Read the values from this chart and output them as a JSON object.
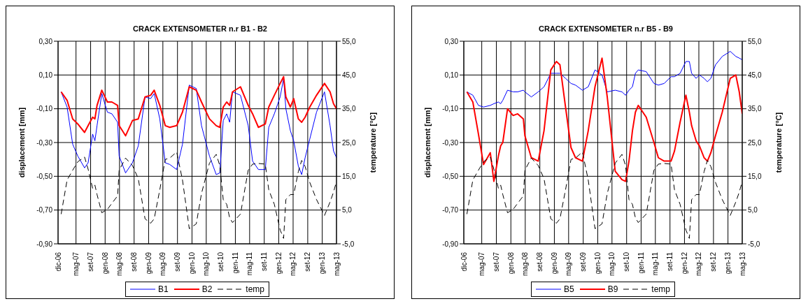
{
  "chart_data": [
    {
      "type": "line",
      "title": "CRACK EXTENSOMETER n.r B1 - B2",
      "ylabel": "displacement [mm]",
      "y2label": "temperature [°C]",
      "x": [
        "2006-12-27",
        "2007-02-15",
        "2007-04-03",
        "2007-05-16",
        "2007-07-12",
        "2007-08-11",
        "2007-09-18",
        "2007-10-07",
        "2007-10-25",
        "2007-12-04",
        "2008-01-20",
        "2008-02-27",
        "2008-04-15",
        "2008-04-28",
        "2008-06-21",
        "2008-08-18",
        "2008-10-06",
        "2008-12-02",
        "2009-01-18",
        "2009-02-17",
        "2009-04-05",
        "2009-05-21",
        "2009-06-28",
        "2009-08-25",
        "2009-10-13",
        "2009-12-09",
        "2010-02-06",
        "2010-03-22",
        "2010-05-28",
        "2010-07-24",
        "2010-08-23",
        "2010-09-21",
        "2010-10-20",
        "2010-11-14",
        "2010-12-08",
        "2011-02-13",
        "2011-04-19",
        "2011-05-26",
        "2011-07-14",
        "2011-09-10",
        "2011-10-09",
        "2011-11-25",
        "2012-01-13",
        "2012-02-11",
        "2012-03-01",
        "2012-04-08",
        "2012-05-06",
        "2012-06-14",
        "2012-07-12",
        "2012-08-10",
        "2012-09-18",
        "2012-11-14",
        "2013-01-20",
        "2013-03-08",
        "2013-04-06",
        "2013-05-01"
      ],
      "series": [
        {
          "name": "B1",
          "color": "#0000ff",
          "line_style": "solid",
          "values": [
            0.0,
            -0.09,
            -0.31,
            -0.38,
            -0.45,
            -0.42,
            -0.25,
            -0.29,
            -0.2,
            -0.01,
            -0.12,
            -0.13,
            -0.18,
            -0.38,
            -0.48,
            -0.42,
            -0.32,
            -0.03,
            -0.04,
            -0.01,
            -0.16,
            -0.42,
            -0.43,
            -0.46,
            -0.31,
            0.04,
            0.02,
            -0.2,
            -0.38,
            -0.49,
            -0.48,
            -0.17,
            -0.13,
            -0.18,
            0.0,
            -0.02,
            -0.2,
            -0.41,
            -0.46,
            -0.46,
            -0.21,
            -0.13,
            -0.03,
            0.08,
            -0.1,
            -0.23,
            -0.29,
            -0.44,
            -0.49,
            -0.39,
            -0.28,
            -0.12,
            0.0,
            -0.2,
            -0.35,
            -0.39
          ]
        },
        {
          "name": "B2",
          "color": "#ff0000",
          "line_style": "solid",
          "values": [
            0.0,
            -0.05,
            -0.16,
            -0.19,
            -0.24,
            -0.2,
            -0.15,
            -0.16,
            -0.08,
            0.01,
            -0.06,
            -0.06,
            -0.08,
            -0.2,
            -0.26,
            -0.17,
            -0.16,
            -0.03,
            -0.02,
            0.01,
            -0.08,
            -0.2,
            -0.21,
            -0.2,
            -0.12,
            0.03,
            0.01,
            -0.06,
            -0.16,
            -0.2,
            -0.21,
            -0.09,
            -0.06,
            -0.08,
            0.0,
            0.03,
            -0.08,
            -0.13,
            -0.21,
            -0.19,
            -0.09,
            -0.02,
            0.05,
            0.09,
            -0.03,
            -0.09,
            -0.04,
            -0.16,
            -0.18,
            -0.15,
            -0.09,
            -0.02,
            0.05,
            0.0,
            -0.07,
            -0.1
          ]
        },
        {
          "name": "temp",
          "color": "#000000",
          "line_style": "dashed",
          "axis": "y2",
          "values": [
            3.8,
            13.9,
            16.8,
            19.3,
            20.7,
            17.1,
            11.4,
            12.4,
            9.6,
            4.2,
            5.2,
            7.0,
            9.2,
            16.8,
            20.4,
            18.2,
            14.3,
            2.4,
            1.1,
            2.4,
            11.0,
            20.0,
            20.4,
            22.2,
            13.9,
            -0.5,
            0.9,
            9.9,
            18.9,
            21.5,
            18.2,
            8.1,
            6.7,
            2.7,
            1.3,
            3.8,
            16.8,
            18.6,
            18.8,
            18.6,
            11.0,
            6.7,
            -0.9,
            -3.4,
            8.1,
            9.6,
            9.6,
            16.4,
            19.7,
            17.9,
            13.2,
            8.1,
            3.4,
            7.4,
            10.3,
            13.5
          ]
        }
      ],
      "xlim": [
        "2006-12",
        "2013-05"
      ],
      "xticks": [
        {
          "value": "2006-12",
          "label": "dic-06"
        },
        {
          "value": "2007-05",
          "label": "mag-07"
        },
        {
          "value": "2007-09",
          "label": "set-07"
        },
        {
          "value": "2008-01",
          "label": "gen-08"
        },
        {
          "value": "2008-05",
          "label": "mag-08"
        },
        {
          "value": "2008-09",
          "label": "set-08"
        },
        {
          "value": "2009-01",
          "label": "gen-09"
        },
        {
          "value": "2009-05",
          "label": "mag-09"
        },
        {
          "value": "2009-09",
          "label": "set-09"
        },
        {
          "value": "2010-01",
          "label": "gen-10"
        },
        {
          "value": "2010-05",
          "label": "mag-10"
        },
        {
          "value": "2010-09",
          "label": "set-10"
        },
        {
          "value": "2011-01",
          "label": "gen-11"
        },
        {
          "value": "2011-05",
          "label": "mag-11"
        },
        {
          "value": "2011-09",
          "label": "set-11"
        },
        {
          "value": "2012-01",
          "label": "gen-12"
        },
        {
          "value": "2012-05",
          "label": "mag-12"
        },
        {
          "value": "2012-09",
          "label": "set-12"
        },
        {
          "value": "2013-01",
          "label": "gen-13"
        },
        {
          "value": "2013-05",
          "label": "mag-13"
        }
      ],
      "ylim": [
        -0.9,
        0.3
      ],
      "yticks": [
        {
          "value": -0.9,
          "label": "-0,90"
        },
        {
          "value": -0.7,
          "label": "-0,70"
        },
        {
          "value": -0.5,
          "label": "-0,50"
        },
        {
          "value": -0.3,
          "label": "-0,30"
        },
        {
          "value": -0.1,
          "label": "-0,10"
        },
        {
          "value": 0.1,
          "label": "0,10"
        },
        {
          "value": 0.3,
          "label": "0,30"
        }
      ],
      "y2lim": [
        -5,
        55
      ],
      "y2ticks": [
        {
          "value": -5,
          "label": "-5,0"
        },
        {
          "value": 5,
          "label": "5,0"
        },
        {
          "value": 15,
          "label": "15,0"
        },
        {
          "value": 25,
          "label": "25,0"
        },
        {
          "value": 35,
          "label": "35,0"
        },
        {
          "value": 45,
          "label": "45,0"
        },
        {
          "value": 55,
          "label": "55,0"
        }
      ],
      "grid": true,
      "legend": "bottom",
      "marker": "none"
    },
    {
      "type": "line",
      "title": "CRACK EXTENSOMETER n.r B5 - B9",
      "ylabel": "displacement [mm]",
      "y2label": "temperature [°C]",
      "x": [
        "2006-12-27",
        "2007-02-15",
        "2007-04-03",
        "2007-05-16",
        "2007-07-12",
        "2007-08-11",
        "2007-09-18",
        "2007-10-07",
        "2007-10-25",
        "2007-12-04",
        "2008-01-20",
        "2008-02-27",
        "2008-04-15",
        "2008-04-28",
        "2008-06-21",
        "2008-08-18",
        "2008-10-06",
        "2008-12-02",
        "2009-01-18",
        "2009-02-17",
        "2009-04-05",
        "2009-05-21",
        "2009-06-28",
        "2009-08-25",
        "2009-10-13",
        "2009-12-09",
        "2010-02-06",
        "2010-03-22",
        "2010-05-28",
        "2010-07-24",
        "2010-08-23",
        "2010-09-21",
        "2010-10-20",
        "2010-11-14",
        "2010-12-08",
        "2011-02-13",
        "2011-04-19",
        "2011-05-26",
        "2011-07-14",
        "2011-09-10",
        "2011-10-09",
        "2011-11-25",
        "2012-01-13",
        "2012-02-11",
        "2012-03-01",
        "2012-04-08",
        "2012-05-06",
        "2012-06-14",
        "2012-07-12",
        "2012-08-10",
        "2012-09-18",
        "2012-11-14",
        "2013-01-20",
        "2013-03-08",
        "2013-04-06",
        "2013-05-01"
      ],
      "series": [
        {
          "name": "B5",
          "color": "#0000ff",
          "line_style": "solid",
          "values": [
            0.0,
            -0.02,
            -0.08,
            -0.09,
            -0.08,
            -0.07,
            -0.06,
            -0.07,
            -0.05,
            0.01,
            0.0,
            0.0,
            0.01,
            0.0,
            -0.03,
            0.0,
            0.03,
            0.11,
            0.11,
            0.11,
            0.08,
            0.05,
            0.04,
            0.01,
            0.03,
            0.13,
            0.1,
            0.0,
            0.01,
            0.0,
            -0.02,
            0.01,
            0.03,
            0.11,
            0.13,
            0.12,
            0.05,
            0.04,
            0.05,
            0.09,
            0.09,
            0.11,
            0.18,
            0.18,
            0.11,
            0.08,
            0.1,
            0.08,
            0.06,
            0.08,
            0.16,
            0.21,
            0.24,
            0.21,
            0.2,
            0.19
          ]
        },
        {
          "name": "B9",
          "color": "#ff0000",
          "line_style": "solid",
          "values": [
            0.0,
            -0.06,
            -0.25,
            -0.43,
            -0.36,
            -0.53,
            -0.38,
            -0.32,
            -0.3,
            -0.1,
            -0.14,
            -0.13,
            -0.16,
            -0.26,
            -0.39,
            -0.41,
            -0.23,
            0.13,
            0.18,
            0.16,
            -0.09,
            -0.33,
            -0.39,
            -0.41,
            -0.23,
            0.03,
            0.2,
            -0.03,
            -0.47,
            -0.52,
            -0.53,
            -0.41,
            -0.23,
            -0.12,
            -0.08,
            -0.15,
            -0.3,
            -0.39,
            -0.41,
            -0.41,
            -0.35,
            -0.18,
            -0.02,
            -0.12,
            -0.2,
            -0.29,
            -0.32,
            -0.39,
            -0.41,
            -0.36,
            -0.26,
            -0.12,
            0.08,
            0.1,
            0.0,
            -0.13
          ]
        },
        {
          "name": "temp",
          "color": "#000000",
          "line_style": "dashed",
          "axis": "y2",
          "values": [
            3.8,
            13.9,
            16.8,
            19.3,
            20.7,
            17.1,
            11.4,
            12.4,
            9.6,
            4.2,
            5.2,
            7.0,
            9.2,
            16.8,
            20.4,
            18.2,
            14.3,
            2.4,
            1.1,
            2.4,
            11.0,
            20.0,
            20.4,
            22.2,
            13.9,
            -0.5,
            0.9,
            9.9,
            18.9,
            21.5,
            18.2,
            8.1,
            6.7,
            2.7,
            1.3,
            3.8,
            16.8,
            18.6,
            18.8,
            18.6,
            11.0,
            6.7,
            -0.9,
            -3.4,
            8.1,
            9.6,
            9.6,
            16.4,
            19.7,
            17.9,
            13.2,
            8.1,
            3.4,
            7.4,
            10.3,
            13.5
          ]
        }
      ],
      "xlim": [
        "2006-12",
        "2013-05"
      ],
      "xticks": [
        {
          "value": "2006-12",
          "label": "dic-06"
        },
        {
          "value": "2007-05",
          "label": "mag-07"
        },
        {
          "value": "2007-09",
          "label": "set-07"
        },
        {
          "value": "2008-01",
          "label": "gen-08"
        },
        {
          "value": "2008-05",
          "label": "mag-08"
        },
        {
          "value": "2008-09",
          "label": "set-08"
        },
        {
          "value": "2009-01",
          "label": "gen-09"
        },
        {
          "value": "2009-05",
          "label": "mag-09"
        },
        {
          "value": "2009-09",
          "label": "set-09"
        },
        {
          "value": "2010-01",
          "label": "gen-10"
        },
        {
          "value": "2010-05",
          "label": "mag-10"
        },
        {
          "value": "2010-09",
          "label": "set-10"
        },
        {
          "value": "2011-01",
          "label": "gen-11"
        },
        {
          "value": "2011-05",
          "label": "mag-11"
        },
        {
          "value": "2011-09",
          "label": "set-11"
        },
        {
          "value": "2012-01",
          "label": "gen-12"
        },
        {
          "value": "2012-05",
          "label": "mag-12"
        },
        {
          "value": "2012-09",
          "label": "set-12"
        },
        {
          "value": "2013-01",
          "label": "gen-13"
        },
        {
          "value": "2013-05",
          "label": "mag-13"
        }
      ],
      "ylim": [
        -0.9,
        0.3
      ],
      "yticks": [
        {
          "value": -0.9,
          "label": "-0,90"
        },
        {
          "value": -0.7,
          "label": "-0,70"
        },
        {
          "value": -0.5,
          "label": "-0,50"
        },
        {
          "value": -0.3,
          "label": "-0,30"
        },
        {
          "value": -0.1,
          "label": "-0,10"
        },
        {
          "value": 0.1,
          "label": "0,10"
        },
        {
          "value": 0.3,
          "label": "0,30"
        }
      ],
      "y2lim": [
        -5,
        55
      ],
      "y2ticks": [
        {
          "value": -5,
          "label": "-5,0"
        },
        {
          "value": 5,
          "label": "5,0"
        },
        {
          "value": 15,
          "label": "15,0"
        },
        {
          "value": 25,
          "label": "25,0"
        },
        {
          "value": 35,
          "label": "35,0"
        },
        {
          "value": 45,
          "label": "45,0"
        },
        {
          "value": 55,
          "label": "55,0"
        }
      ],
      "grid": true,
      "legend": "bottom",
      "marker": "none"
    }
  ]
}
